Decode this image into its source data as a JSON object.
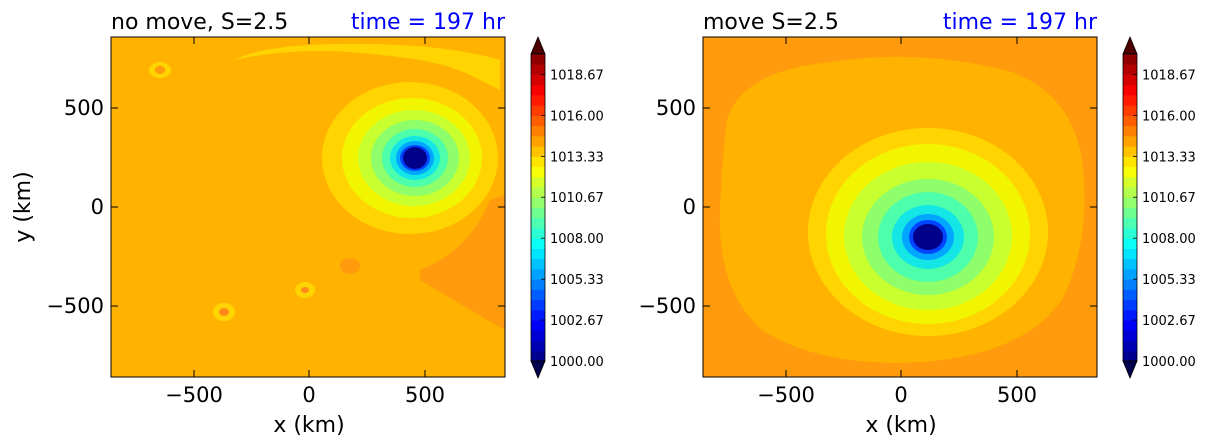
{
  "chart_data": [
    {
      "type": "contour",
      "title_left": "no move, S=2.5",
      "title_right": "time = 197 hr",
      "xlabel": "x (km)",
      "ylabel": "y (km)",
      "xlim": [
        -850,
        850
      ],
      "ylim": [
        -850,
        850
      ],
      "xticks": [
        -500,
        0,
        500
      ],
      "yticks": [
        -500,
        0,
        500
      ],
      "xtick_labels": [
        "−500",
        "0",
        "500"
      ],
      "ytick_labels": [
        "−500",
        "0",
        "500"
      ],
      "colorbar": {
        "range": [
          1000,
          1020
        ],
        "levels": 30,
        "tick_values": [
          1000.0,
          1002.67,
          1005.33,
          1008.0,
          1010.67,
          1013.33,
          1016.0,
          1018.67
        ],
        "tick_labels": [
          "1000.00",
          "1002.67",
          "1005.33",
          "1008.00",
          "1010.67",
          "1013.33",
          "1016.00",
          "1018.67"
        ],
        "extend": "both",
        "colormap": "jet"
      },
      "vortex_center": [
        460,
        240
      ],
      "background_level": 1014.5
    },
    {
      "type": "contour",
      "title_left": "move S=2.5",
      "title_right": "time = 197 hr",
      "xlabel": "x (km)",
      "ylabel": "",
      "xlim": [
        -850,
        850
      ],
      "ylim": [
        -850,
        850
      ],
      "xticks": [
        -500,
        0,
        500
      ],
      "yticks": [
        -500,
        0,
        500
      ],
      "xtick_labels": [
        "−500",
        "0",
        "500"
      ],
      "ytick_labels": [
        "−500",
        "0",
        "500"
      ],
      "colorbar": {
        "range": [
          1000,
          1020
        ],
        "levels": 30,
        "tick_values": [
          1000.0,
          1002.67,
          1005.33,
          1008.0,
          1010.67,
          1013.33,
          1016.0,
          1018.67
        ],
        "tick_labels": [
          "1000.00",
          "1002.67",
          "1005.33",
          "1008.00",
          "1010.67",
          "1013.33",
          "1016.00",
          "1018.67"
        ],
        "extend": "both",
        "colormap": "jet"
      },
      "vortex_center": [
        120,
        -160
      ],
      "background_level": 1014.5
    }
  ]
}
